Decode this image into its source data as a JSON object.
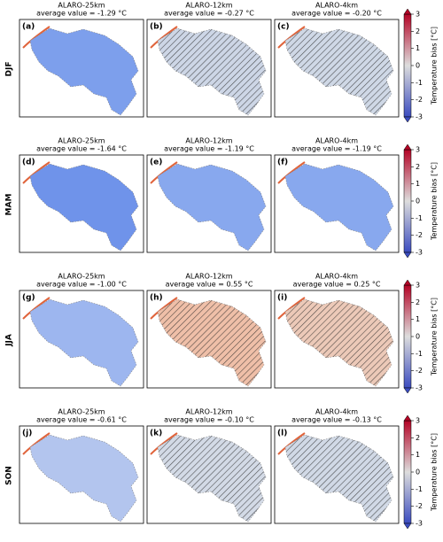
{
  "colorbar": {
    "label": "Temperature bias [°C]",
    "lim": [
      -3,
      3
    ],
    "ticks": [
      -3,
      -2,
      -1,
      0,
      1,
      2,
      3
    ]
  },
  "rows": [
    {
      "season": "DJF",
      "panels": [
        {
          "label": "(a)",
          "model": "ALARO-25km",
          "average": "average value = -1.29 °C",
          "color": "#7d9fec",
          "hatched": false
        },
        {
          "label": "(b)",
          "model": "ALARO-12km",
          "average": "average value = -0.27 °C",
          "color": "#cdd6e6",
          "hatched": true
        },
        {
          "label": "(c)",
          "model": "ALARO-4km",
          "average": "average value = -0.20 °C",
          "color": "#cfd8e6",
          "hatched": true
        }
      ]
    },
    {
      "season": "MAM",
      "panels": [
        {
          "label": "(d)",
          "model": "ALARO-25km",
          "average": "average value = -1.64 °C",
          "color": "#6f93ea",
          "hatched": false
        },
        {
          "label": "(e)",
          "model": "ALARO-12km",
          "average": "average value = -1.19 °C",
          "color": "#88a8ee",
          "hatched": false
        },
        {
          "label": "(f)",
          "model": "ALARO-4km",
          "average": "average value = -1.19 °C",
          "color": "#88a8ee",
          "hatched": false
        }
      ]
    },
    {
      "season": "JJA",
      "panels": [
        {
          "label": "(g)",
          "model": "ALARO-25km",
          "average": "average value = -1.00 °C",
          "color": "#9db6ef",
          "hatched": false
        },
        {
          "label": "(h)",
          "model": "ALARO-12km",
          "average": "average value = 0.55 °C",
          "color": "#efbfa8",
          "hatched": true
        },
        {
          "label": "(i)",
          "model": "ALARO-4km",
          "average": "average value = 0.25 °C",
          "color": "#ecc9b8",
          "hatched": true
        }
      ]
    },
    {
      "season": "SON",
      "panels": [
        {
          "label": "(j)",
          "model": "ALARO-25km",
          "average": "average value = -0.61 °C",
          "color": "#b3c5ee",
          "hatched": false
        },
        {
          "label": "(k)",
          "model": "ALARO-12km",
          "average": "average value = -0.10 °C",
          "color": "#d3dae6",
          "hatched": true
        },
        {
          "label": "(l)",
          "model": "ALARO-4km",
          "average": "average value = -0.13 °C",
          "color": "#d1d9e6",
          "hatched": true
        }
      ]
    }
  ]
}
